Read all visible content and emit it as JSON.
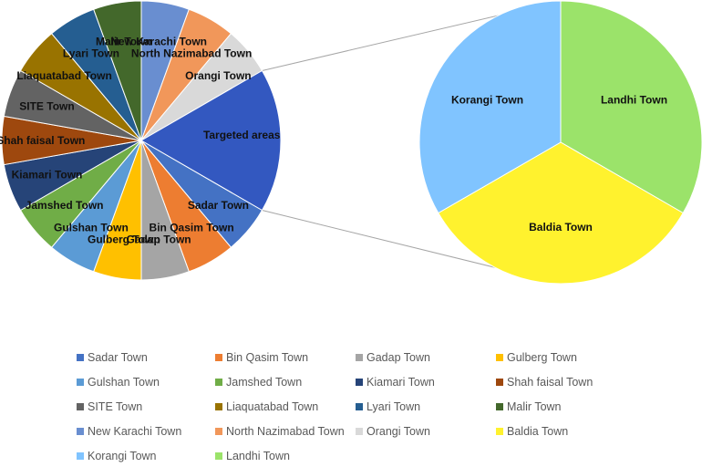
{
  "chart_data": {
    "type": "pie",
    "subtype": "pie-of-pie",
    "title": "",
    "primary_pie": {
      "slices": [
        {
          "label": "Sadar Town",
          "value": 1,
          "color": "#4472C4"
        },
        {
          "label": "Bin Qasim Town",
          "value": 1,
          "color": "#ED7D31"
        },
        {
          "label": "Gadap Town",
          "value": 1,
          "color": "#A5A5A5"
        },
        {
          "label": "Gulberg Town",
          "value": 1,
          "color": "#FFC000"
        },
        {
          "label": "Gulshan Town",
          "value": 1,
          "color": "#5B9BD5"
        },
        {
          "label": "Jamshed Town",
          "value": 1,
          "color": "#70AD47"
        },
        {
          "label": "Kiamari Town",
          "value": 1,
          "color": "#264478"
        },
        {
          "label": "Shah faisal Town",
          "value": 1,
          "color": "#9E480E"
        },
        {
          "label": "SITE Town",
          "value": 1,
          "color": "#636363"
        },
        {
          "label": "Liaquatabad Town",
          "value": 1,
          "color": "#997300"
        },
        {
          "label": "Lyari Town",
          "value": 1,
          "color": "#255E91"
        },
        {
          "label": "Malir Town",
          "value": 1,
          "color": "#43682B"
        },
        {
          "label": "New Karachi Town",
          "value": 1,
          "color": "#698ED0"
        },
        {
          "label": "North Nazimabad Town",
          "value": 1,
          "color": "#F1975A"
        },
        {
          "label": "Orangi Town",
          "value": 1,
          "color": "#D9D9D9"
        },
        {
          "label": "Targeted areas",
          "value": 3,
          "color": "#3358C0"
        }
      ]
    },
    "secondary_pie": {
      "slices": [
        {
          "label": "Landhi Town",
          "value": 1,
          "color": "#9BE36A"
        },
        {
          "label": "Baldia Town",
          "value": 1,
          "color": "#FFF22E"
        },
        {
          "label": "Korangi Town",
          "value": 1,
          "color": "#80C4FF"
        }
      ]
    },
    "legend": {
      "position": "bottom",
      "entries": [
        {
          "label": "Sadar Town",
          "color": "#4472C4"
        },
        {
          "label": "Bin Qasim Town",
          "color": "#ED7D31"
        },
        {
          "label": "Gadap Town",
          "color": "#A5A5A5"
        },
        {
          "label": "Gulberg Town",
          "color": "#FFC000"
        },
        {
          "label": "Gulshan Town",
          "color": "#5B9BD5"
        },
        {
          "label": "Jamshed Town",
          "color": "#70AD47"
        },
        {
          "label": "Kiamari Town",
          "color": "#264478"
        },
        {
          "label": "Shah faisal Town",
          "color": "#9E480E"
        },
        {
          "label": "SITE Town",
          "color": "#636363"
        },
        {
          "label": "Liaquatabad Town",
          "color": "#997300"
        },
        {
          "label": "Lyari Town",
          "color": "#255E91"
        },
        {
          "label": "Malir Town",
          "color": "#43682B"
        },
        {
          "label": "New Karachi Town",
          "color": "#698ED0"
        },
        {
          "label": "North Nazimabad Town",
          "color": "#F1975A"
        },
        {
          "label": "Orangi Town",
          "color": "#D9D9D9"
        },
        {
          "label": "Baldia Town",
          "color": "#FFF22E"
        },
        {
          "label": "Korangi Town",
          "color": "#80C4FF"
        },
        {
          "label": "Landhi Town",
          "color": "#9BE36A"
        }
      ]
    }
  }
}
